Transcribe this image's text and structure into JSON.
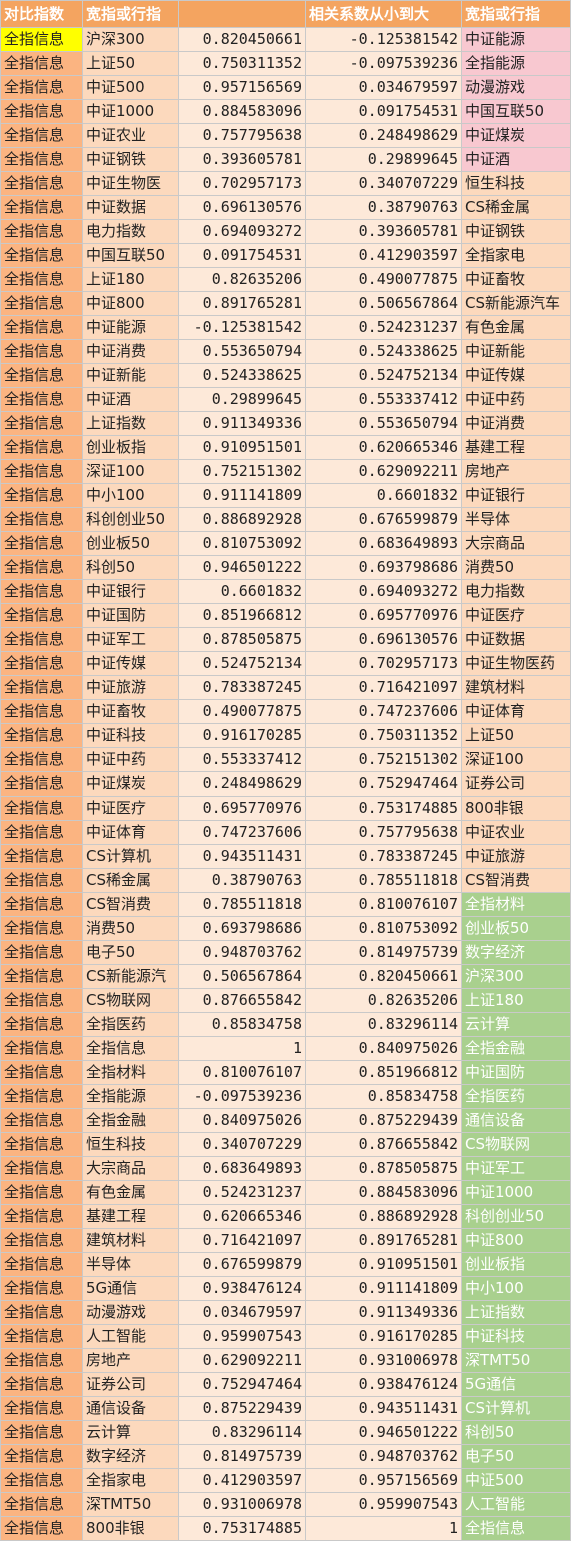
{
  "header": [
    "对比指数",
    "宽指或行指",
    "",
    "相关系数从小到大",
    "宽指或行指"
  ],
  "colors": {
    "header_bg": "#f4a460",
    "compare_col_bg": "#fbb481",
    "highlight": "#ffff00",
    "top_band": "#f8c8d0",
    "mid_band": "#fcd9bd",
    "bottom_band": "#a9d08e"
  },
  "rows": [
    [
      "全指信息",
      "沪深300",
      "0.820450661",
      "-0.125381542",
      "中证能源"
    ],
    [
      "全指信息",
      "上证50",
      "0.750311352",
      "-0.097539236",
      "全指能源"
    ],
    [
      "全指信息",
      "中证500",
      "0.957156569",
      "0.034679597",
      "动漫游戏"
    ],
    [
      "全指信息",
      "中证1000",
      "0.884583096",
      "0.091754531",
      "中国互联50"
    ],
    [
      "全指信息",
      "中证农业",
      "0.757795638",
      "0.248498629",
      "中证煤炭"
    ],
    [
      "全指信息",
      "中证钢铁",
      "0.393605781",
      "0.29899645",
      "中证酒"
    ],
    [
      "全指信息",
      "中证生物医",
      "0.702957173",
      "0.340707229",
      "恒生科技"
    ],
    [
      "全指信息",
      "中证数据",
      "0.696130576",
      "0.38790763",
      "CS稀金属"
    ],
    [
      "全指信息",
      "电力指数",
      "0.694093272",
      "0.393605781",
      "中证钢铁"
    ],
    [
      "全指信息",
      "中国互联50",
      "0.091754531",
      "0.412903597",
      "全指家电"
    ],
    [
      "全指信息",
      "上证180",
      "0.82635206",
      "0.490077875",
      "中证畜牧"
    ],
    [
      "全指信息",
      "中证800",
      "0.891765281",
      "0.506567864",
      "CS新能源汽车"
    ],
    [
      "全指信息",
      "中证能源",
      "-0.125381542",
      "0.524231237",
      "有色金属"
    ],
    [
      "全指信息",
      "中证消费",
      "0.553650794",
      "0.524338625",
      "中证新能"
    ],
    [
      "全指信息",
      "中证新能",
      "0.524338625",
      "0.524752134",
      "中证传媒"
    ],
    [
      "全指信息",
      "中证酒",
      "0.29899645",
      "0.553337412",
      "中证中药"
    ],
    [
      "全指信息",
      "上证指数",
      "0.911349336",
      "0.553650794",
      "中证消费"
    ],
    [
      "全指信息",
      "创业板指",
      "0.910951501",
      "0.620665346",
      "基建工程"
    ],
    [
      "全指信息",
      "深证100",
      "0.752151302",
      "0.629092211",
      "房地产"
    ],
    [
      "全指信息",
      "中小100",
      "0.911141809",
      "0.6601832",
      "中证银行"
    ],
    [
      "全指信息",
      "科创创业50",
      "0.886892928",
      "0.676599879",
      "半导体"
    ],
    [
      "全指信息",
      "创业板50",
      "0.810753092",
      "0.683649893",
      "大宗商品"
    ],
    [
      "全指信息",
      "科创50",
      "0.946501222",
      "0.693798686",
      "消费50"
    ],
    [
      "全指信息",
      "中证银行",
      "0.6601832",
      "0.694093272",
      "电力指数"
    ],
    [
      "全指信息",
      "中证国防",
      "0.851966812",
      "0.695770976",
      "中证医疗"
    ],
    [
      "全指信息",
      "中证军工",
      "0.878505875",
      "0.696130576",
      "中证数据"
    ],
    [
      "全指信息",
      "中证传媒",
      "0.524752134",
      "0.702957173",
      "中证生物医药"
    ],
    [
      "全指信息",
      "中证旅游",
      "0.783387245",
      "0.716421097",
      "建筑材料"
    ],
    [
      "全指信息",
      "中证畜牧",
      "0.490077875",
      "0.747237606",
      "中证体育"
    ],
    [
      "全指信息",
      "中证科技",
      "0.916170285",
      "0.750311352",
      "上证50"
    ],
    [
      "全指信息",
      "中证中药",
      "0.553337412",
      "0.752151302",
      "深证100"
    ],
    [
      "全指信息",
      "中证煤炭",
      "0.248498629",
      "0.752947464",
      "证券公司"
    ],
    [
      "全指信息",
      "中证医疗",
      "0.695770976",
      "0.753174885",
      "800非银"
    ],
    [
      "全指信息",
      "中证体育",
      "0.747237606",
      "0.757795638",
      "中证农业"
    ],
    [
      "全指信息",
      "CS计算机",
      "0.943511431",
      "0.783387245",
      "中证旅游"
    ],
    [
      "全指信息",
      "CS稀金属",
      "0.38790763",
      "0.785511818",
      "CS智消费"
    ],
    [
      "全指信息",
      "CS智消费",
      "0.785511818",
      "0.810076107",
      "全指材料"
    ],
    [
      "全指信息",
      "消费50",
      "0.693798686",
      "0.810753092",
      "创业板50"
    ],
    [
      "全指信息",
      "电子50",
      "0.948703762",
      "0.814975739",
      "数字经济"
    ],
    [
      "全指信息",
      "CS新能源汽",
      "0.506567864",
      "0.820450661",
      "沪深300"
    ],
    [
      "全指信息",
      "CS物联网",
      "0.876655842",
      "0.82635206",
      "上证180"
    ],
    [
      "全指信息",
      "全指医药",
      "0.85834758",
      "0.83296114",
      "云计算"
    ],
    [
      "全指信息",
      "全指信息",
      "1",
      "0.840975026",
      "全指金融"
    ],
    [
      "全指信息",
      "全指材料",
      "0.810076107",
      "0.851966812",
      "中证国防"
    ],
    [
      "全指信息",
      "全指能源",
      "-0.097539236",
      "0.85834758",
      "全指医药"
    ],
    [
      "全指信息",
      "全指金融",
      "0.840975026",
      "0.875229439",
      "通信设备"
    ],
    [
      "全指信息",
      "恒生科技",
      "0.340707229",
      "0.876655842",
      "CS物联网"
    ],
    [
      "全指信息",
      "大宗商品",
      "0.683649893",
      "0.878505875",
      "中证军工"
    ],
    [
      "全指信息",
      "有色金属",
      "0.524231237",
      "0.884583096",
      "中证1000"
    ],
    [
      "全指信息",
      "基建工程",
      "0.620665346",
      "0.886892928",
      "科创创业50"
    ],
    [
      "全指信息",
      "建筑材料",
      "0.716421097",
      "0.891765281",
      "中证800"
    ],
    [
      "全指信息",
      "半导体",
      "0.676599879",
      "0.910951501",
      "创业板指"
    ],
    [
      "全指信息",
      "5G通信",
      "0.938476124",
      "0.911141809",
      "中小100"
    ],
    [
      "全指信息",
      "动漫游戏",
      "0.034679597",
      "0.911349336",
      "上证指数"
    ],
    [
      "全指信息",
      "人工智能",
      "0.959907543",
      "0.916170285",
      "中证科技"
    ],
    [
      "全指信息",
      "房地产",
      "0.629092211",
      "0.931006978",
      "深TMT50"
    ],
    [
      "全指信息",
      "证券公司",
      "0.752947464",
      "0.938476124",
      "5G通信"
    ],
    [
      "全指信息",
      "通信设备",
      "0.875229439",
      "0.943511431",
      "CS计算机"
    ],
    [
      "全指信息",
      "云计算",
      "0.83296114",
      "0.946501222",
      "科创50"
    ],
    [
      "全指信息",
      "数字经济",
      "0.814975739",
      "0.948703762",
      "电子50"
    ],
    [
      "全指信息",
      "全指家电",
      "0.412903597",
      "0.957156569",
      "中证500"
    ],
    [
      "全指信息",
      "深TMT50",
      "0.931006978",
      "0.959907543",
      "人工智能"
    ],
    [
      "全指信息",
      "800非银",
      "0.753174885",
      "1",
      "全指信息"
    ]
  ]
}
